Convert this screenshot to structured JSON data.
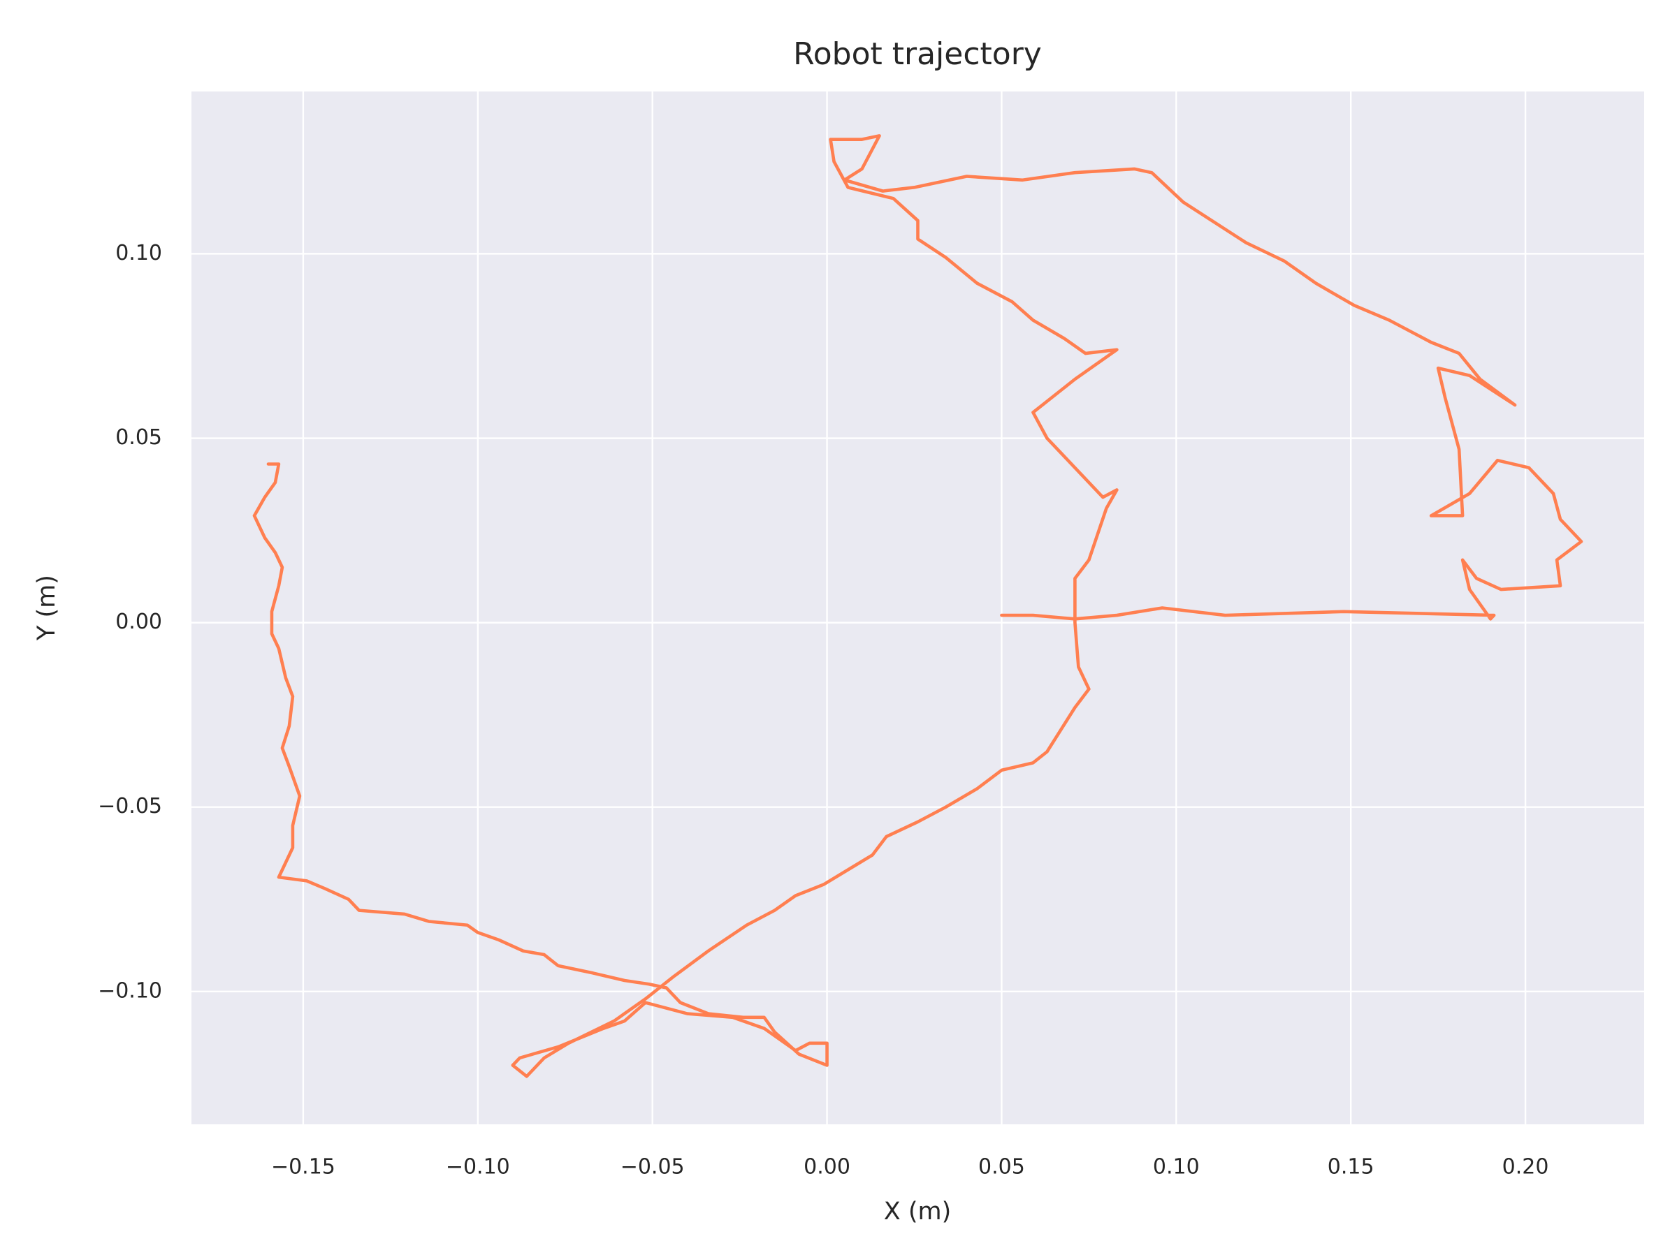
{
  "chart_data": {
    "type": "line",
    "title": "Robot trajectory",
    "x_label": "X (m)",
    "y_label": "Y (m)",
    "color": "#ff7f50",
    "grid": true,
    "xlim": [
      -0.182,
      0.234
    ],
    "ylim": [
      -0.136,
      0.144
    ],
    "xticks": [
      {
        "value": -0.15,
        "label": "−0.15"
      },
      {
        "value": -0.1,
        "label": "−0.10"
      },
      {
        "value": -0.05,
        "label": "−0.05"
      },
      {
        "value": 0,
        "label": "0.00"
      },
      {
        "value": 0.05,
        "label": "0.05"
      },
      {
        "value": 0.1,
        "label": "0.10"
      },
      {
        "value": 0.15,
        "label": "0.15"
      },
      {
        "value": 0.2,
        "label": "0.20"
      }
    ],
    "yticks": [
      {
        "value": -0.1,
        "label": "−0.10"
      },
      {
        "value": -0.05,
        "label": "−0.05"
      },
      {
        "value": 0,
        "label": "0.00"
      },
      {
        "value": 0.05,
        "label": "0.05"
      },
      {
        "value": 0.1,
        "label": "0.10"
      }
    ],
    "x": [
      -0.16,
      -0.157,
      -0.158,
      -0.161,
      -0.164,
      -0.161,
      -0.158,
      -0.156,
      -0.157,
      -0.159,
      -0.159,
      -0.157,
      -0.155,
      -0.153,
      -0.154,
      -0.156,
      -0.154,
      -0.151,
      -0.153,
      -0.153,
      -0.157,
      -0.149,
      -0.144,
      -0.137,
      -0.134,
      -0.121,
      -0.114,
      -0.103,
      -0.1,
      -0.094,
      -0.087,
      -0.081,
      -0.077,
      -0.067,
      -0.058,
      -0.051,
      -0.046,
      -0.042,
      -0.034,
      -0.024,
      -0.018,
      -0.015,
      -0.008,
      0.0,
      0.0,
      -0.005,
      -0.009,
      -0.018,
      -0.027,
      -0.04,
      -0.052,
      -0.058,
      -0.064,
      -0.077,
      -0.088,
      -0.09,
      -0.086,
      -0.081,
      -0.074,
      -0.061,
      -0.052,
      -0.044,
      -0.034,
      -0.023,
      -0.015,
      -0.009,
      -0.001,
      0.006,
      0.013,
      0.017,
      0.026,
      0.034,
      0.043,
      0.05,
      0.059,
      0.063,
      0.067,
      0.071,
      0.075,
      0.072,
      0.071,
      0.071,
      0.075,
      0.08,
      0.083,
      0.079,
      0.071,
      0.063,
      0.059,
      0.071,
      0.083,
      0.074,
      0.068,
      0.059,
      0.053,
      0.043,
      0.034,
      0.026,
      0.026,
      0.019,
      0.006,
      0.002,
      0.001,
      0.01,
      0.015,
      0.01,
      0.005,
      0.016,
      0.025,
      0.04,
      0.056,
      0.071,
      0.088,
      0.093,
      0.102,
      0.12,
      0.131,
      0.14,
      0.151,
      0.161,
      0.173,
      0.181,
      0.187,
      0.197,
      0.184,
      0.175,
      0.177,
      0.181,
      0.182,
      0.173,
      0.184,
      0.192,
      0.201,
      0.208,
      0.21,
      0.216,
      0.209,
      0.21,
      0.193,
      0.186,
      0.182,
      0.184,
      0.19,
      0.191,
      0.148,
      0.114,
      0.096,
      0.083,
      0.071,
      0.059,
      0.05
    ],
    "values": [
      0.043,
      0.043,
      0.038,
      0.034,
      0.029,
      0.023,
      0.019,
      0.015,
      0.01,
      0.003,
      -0.003,
      -0.007,
      -0.015,
      -0.02,
      -0.028,
      -0.034,
      -0.039,
      -0.047,
      -0.055,
      -0.061,
      -0.069,
      -0.07,
      -0.072,
      -0.075,
      -0.078,
      -0.079,
      -0.081,
      -0.082,
      -0.084,
      -0.086,
      -0.089,
      -0.09,
      -0.093,
      -0.095,
      -0.097,
      -0.098,
      -0.099,
      -0.103,
      -0.106,
      -0.107,
      -0.107,
      -0.111,
      -0.117,
      -0.12,
      -0.114,
      -0.114,
      -0.116,
      -0.11,
      -0.107,
      -0.106,
      -0.103,
      -0.108,
      -0.11,
      -0.115,
      -0.118,
      -0.12,
      -0.123,
      -0.118,
      -0.114,
      -0.108,
      -0.102,
      -0.096,
      -0.089,
      -0.082,
      -0.078,
      -0.074,
      -0.071,
      -0.067,
      -0.063,
      -0.058,
      -0.054,
      -0.05,
      -0.045,
      -0.04,
      -0.038,
      -0.035,
      -0.029,
      -0.023,
      -0.018,
      -0.012,
      0.0,
      0.012,
      0.017,
      0.031,
      0.036,
      0.034,
      0.042,
      0.05,
      0.057,
      0.066,
      0.074,
      0.073,
      0.077,
      0.082,
      0.087,
      0.092,
      0.099,
      0.104,
      0.109,
      0.115,
      0.118,
      0.125,
      0.131,
      0.131,
      0.132,
      0.123,
      0.12,
      0.117,
      0.118,
      0.121,
      0.12,
      0.122,
      0.123,
      0.122,
      0.114,
      0.103,
      0.098,
      0.092,
      0.086,
      0.082,
      0.076,
      0.073,
      0.066,
      0.059,
      0.067,
      0.069,
      0.061,
      0.047,
      0.029,
      0.029,
      0.035,
      0.044,
      0.042,
      0.035,
      0.028,
      0.022,
      0.017,
      0.01,
      0.009,
      0.012,
      0.017,
      0.009,
      0.001,
      0.002,
      0.003,
      0.002,
      0.004,
      0.002,
      0.001,
      0.002,
      0.002
    ]
  }
}
